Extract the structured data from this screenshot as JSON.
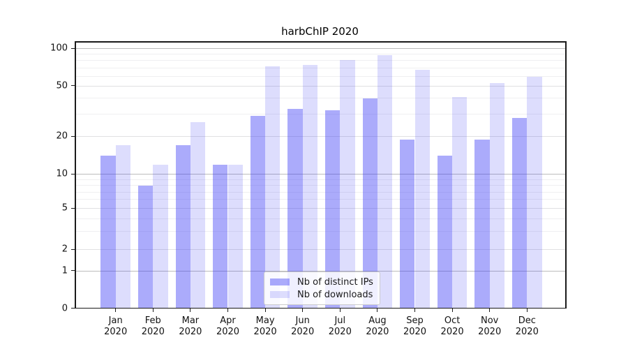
{
  "title": "harbChIP 2020",
  "legend": {
    "items": [
      {
        "label": "Nb of distinct IPs",
        "color": "rgba(56,56,245,0.42)"
      },
      {
        "label": "Nb of downloads",
        "color": "rgba(56,56,245,0.17)"
      }
    ]
  },
  "axes": {
    "y_ticks": [
      0,
      1,
      2,
      5,
      10,
      20,
      50,
      100
    ],
    "y_major_grid": [
      1,
      10,
      100
    ],
    "y_mid_grid": [
      2,
      5,
      20,
      50
    ],
    "y_minor_grid": [
      3,
      4,
      6,
      7,
      8,
      9,
      30,
      40,
      60,
      70,
      80,
      90
    ]
  },
  "chart_data": {
    "type": "bar",
    "title": "harbChIP 2020",
    "categories": [
      "Jan 2020",
      "Feb 2020",
      "Mar 2020",
      "Apr 2020",
      "May 2020",
      "Jun 2020",
      "Jul 2020",
      "Aug 2020",
      "Sep 2020",
      "Oct 2020",
      "Nov 2020",
      "Dec 2020"
    ],
    "series": [
      {
        "name": "Nb of distinct IPs",
        "values": [
          14,
          8,
          17,
          12,
          29,
          33,
          32,
          40,
          19,
          14,
          19,
          28
        ]
      },
      {
        "name": "Nb of downloads",
        "values": [
          17,
          12,
          26,
          12,
          72,
          74,
          81,
          89,
          68,
          41,
          53,
          59
        ]
      }
    ],
    "ylabel": "",
    "xlabel": "",
    "ylim": [
      0,
      100
    ],
    "yscale": "log-like with 0 baseline, ticks 0/1/2/5/10/20/50/100",
    "grid": true,
    "legend_position": "inside-bottom-center"
  }
}
